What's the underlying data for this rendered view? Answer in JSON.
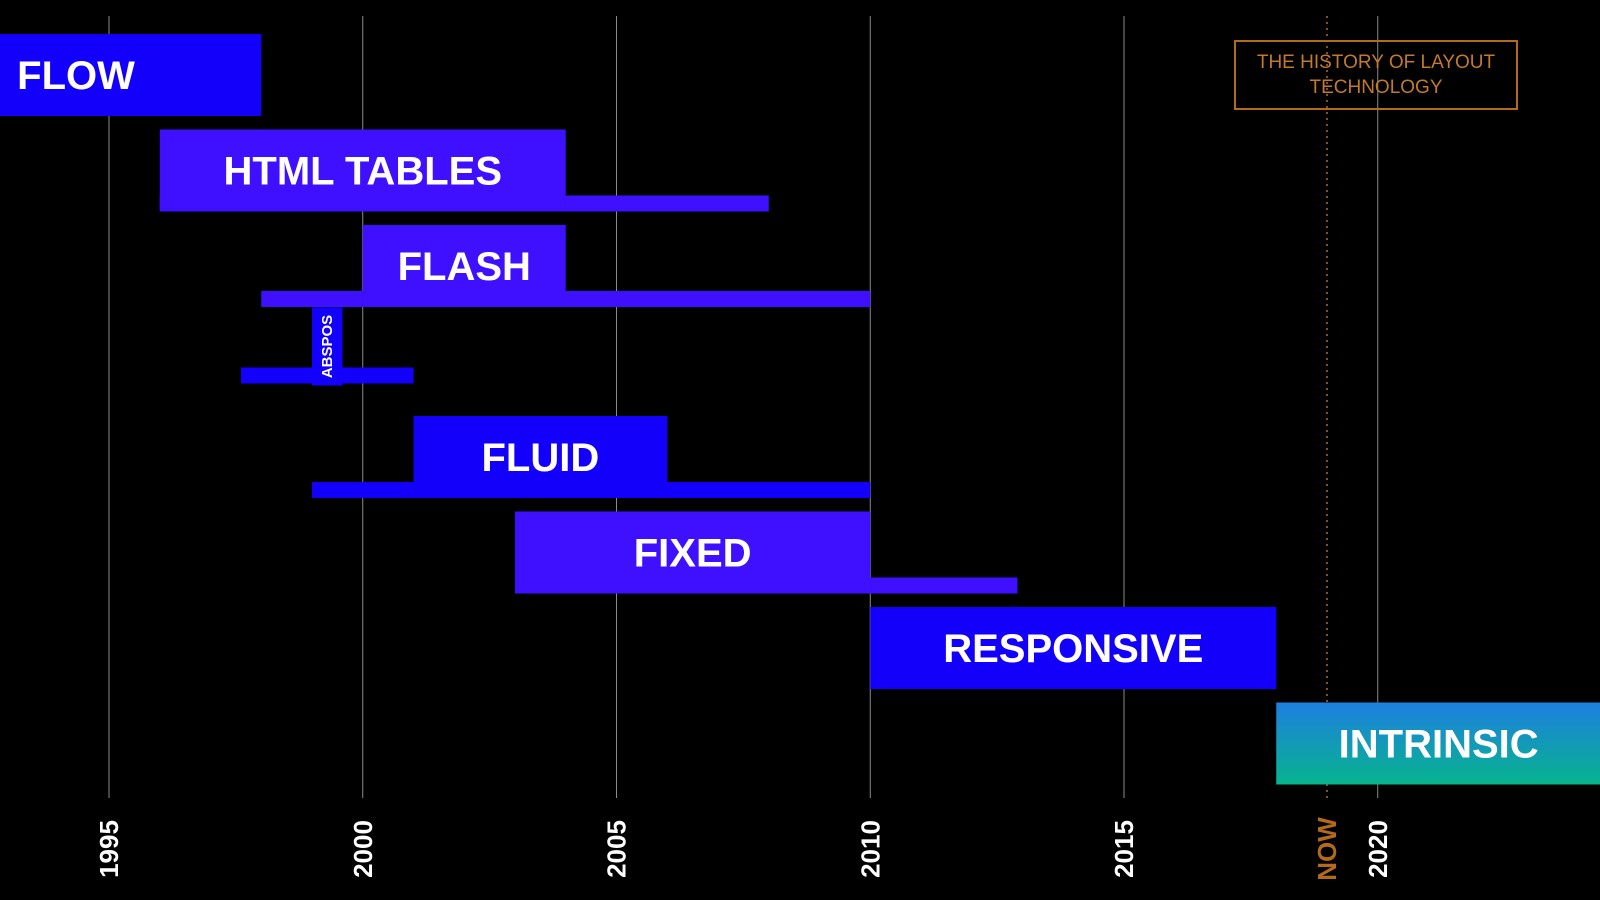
{
  "chart_data": {
    "type": "bar",
    "title": "THE HISTORY OF LAYOUT TECHNOLOGY",
    "x_axis_ticks": [
      "1995",
      "2000",
      "2005",
      "2010",
      "2015",
      "2020"
    ],
    "xlim": [
      1990.7,
      2024.4
    ],
    "now": {
      "label": "NOW",
      "year": 2019
    },
    "colors": {
      "background": "#000000",
      "gridline": "#8a8a8a",
      "blue": "#1300fa",
      "violet": "#3f0fff",
      "now_line": "#b36a1d",
      "now_label": "#b36a1d",
      "intrinsic_gradient": [
        "#1e7fe0",
        "#07b48e"
      ]
    },
    "series": [
      {
        "name": "FLOW",
        "dominant": [
          1990.7,
          1998.0
        ],
        "usage": null,
        "color": "blue"
      },
      {
        "name": "HTML TABLES",
        "dominant": [
          1996.0,
          2004.0
        ],
        "usage": [
          1996.0,
          2008.0
        ],
        "color": "violet"
      },
      {
        "name": "FLASH",
        "dominant": [
          2000.0,
          2004.0
        ],
        "usage": [
          1998.0,
          2010.0
        ],
        "color": "violet"
      },
      {
        "name": "ABSPOS",
        "dominant": [
          1999.0,
          1999.6
        ],
        "usage": [
          1997.6,
          2001.0
        ],
        "color": "blue",
        "vertical_label": true
      },
      {
        "name": "FLUID",
        "dominant": [
          2001.0,
          2006.0
        ],
        "usage": [
          1999.0,
          2010.0
        ],
        "color": "blue"
      },
      {
        "name": "FIXED",
        "dominant": [
          2003.0,
          2010.0
        ],
        "usage": [
          2003.0,
          2012.9
        ],
        "color": "violet"
      },
      {
        "name": "RESPONSIVE",
        "dominant": [
          2010.0,
          2018.0
        ],
        "usage": null,
        "color": "blue"
      },
      {
        "name": "INTRINSIC",
        "dominant": [
          2018.0,
          2024.4
        ],
        "usage": null,
        "color": "gradient"
      }
    ]
  }
}
